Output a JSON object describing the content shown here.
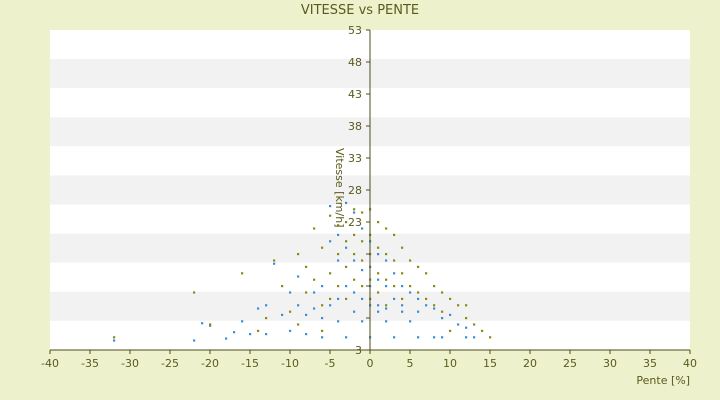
{
  "chart_data": {
    "type": "scatter",
    "title": "VITESSE vs PENTE",
    "xlabel": "Pente [%]",
    "ylabel": "Vitesse [km/h]",
    "xlim": [
      -40,
      40
    ],
    "ylim": [
      3,
      53
    ],
    "x_ticks": [
      -40,
      -35,
      -30,
      -25,
      -20,
      -15,
      -10,
      -5,
      0,
      5,
      10,
      15,
      20,
      25,
      30,
      35,
      40
    ],
    "y_ticks": [
      3,
      8,
      13,
      18,
      23,
      28,
      33,
      38,
      43,
      48,
      53
    ],
    "y_tick_labels": [
      "3",
      "",
      "",
      "",
      "23",
      "28",
      "33",
      "38",
      "43",
      "48",
      "53"
    ],
    "grid": "horizontal bands",
    "colors": {
      "background": "#eef2cc",
      "band_light": "#ffffff",
      "band_grey": "#f2f2f2",
      "axis": "#4d4d1a",
      "text": "#5a5a1e"
    },
    "series": [
      {
        "marker_color": "#3a8fd4",
        "points": [
          [
            -32,
            4.5
          ],
          [
            -22,
            4.5
          ],
          [
            -21,
            7.2
          ],
          [
            -20,
            6.8
          ],
          [
            -18,
            4.8
          ],
          [
            -17,
            5.8
          ],
          [
            -16,
            7.5
          ],
          [
            -15,
            5.5
          ],
          [
            -14,
            9.5
          ],
          [
            -13,
            10
          ],
          [
            -13,
            5.5
          ],
          [
            -12,
            16.5
          ],
          [
            -11,
            8.5
          ],
          [
            -10,
            6
          ],
          [
            -10,
            12
          ],
          [
            -9,
            14.5
          ],
          [
            -9,
            10
          ],
          [
            -8,
            8.5
          ],
          [
            -8,
            5.5
          ],
          [
            -7,
            9.5
          ],
          [
            -7,
            12
          ],
          [
            -6,
            13
          ],
          [
            -6,
            8
          ],
          [
            -5,
            25.5
          ],
          [
            -5,
            20
          ],
          [
            -5,
            10
          ],
          [
            -4,
            21
          ],
          [
            -4,
            17
          ],
          [
            -4,
            11
          ],
          [
            -3,
            26
          ],
          [
            -3,
            19
          ],
          [
            -3,
            13
          ],
          [
            -2,
            24.5
          ],
          [
            -2,
            17
          ],
          [
            -2,
            12
          ],
          [
            -1,
            22
          ],
          [
            -1,
            15.5
          ],
          [
            -1,
            11
          ],
          [
            0,
            20
          ],
          [
            0,
            16
          ],
          [
            0,
            13
          ],
          [
            0,
            10
          ],
          [
            1,
            18
          ],
          [
            1,
            14
          ],
          [
            1,
            10
          ],
          [
            2,
            17
          ],
          [
            2,
            13
          ],
          [
            2,
            9.5
          ],
          [
            3,
            15
          ],
          [
            3,
            11
          ],
          [
            4,
            13
          ],
          [
            4,
            10
          ],
          [
            5,
            12
          ],
          [
            6,
            11
          ],
          [
            6,
            9
          ],
          [
            7,
            10
          ],
          [
            8,
            9.5
          ],
          [
            9,
            8
          ],
          [
            10,
            8.5
          ],
          [
            11,
            7
          ],
          [
            12,
            6.5
          ],
          [
            13,
            5
          ],
          [
            -6,
            5
          ],
          [
            -3,
            5
          ],
          [
            0,
            5
          ],
          [
            3,
            5
          ],
          [
            6,
            5
          ],
          [
            9,
            5
          ],
          [
            12,
            5
          ],
          [
            -4,
            7.5
          ],
          [
            -1,
            7.5
          ],
          [
            2,
            7.5
          ],
          [
            5,
            7.5
          ],
          [
            -2,
            9
          ],
          [
            1,
            9
          ],
          [
            4,
            9
          ],
          [
            8,
            5
          ]
        ]
      },
      {
        "marker_color": "#8a8a12",
        "points": [
          [
            -32,
            5
          ],
          [
            -22,
            12
          ],
          [
            -20,
            7
          ],
          [
            -16,
            15
          ],
          [
            -14,
            6
          ],
          [
            -12,
            17
          ],
          [
            -11,
            13
          ],
          [
            -10,
            9
          ],
          [
            -9,
            18
          ],
          [
            -8,
            12
          ],
          [
            -8,
            16
          ],
          [
            -7,
            22
          ],
          [
            -7,
            14
          ],
          [
            -6,
            19
          ],
          [
            -6,
            10
          ],
          [
            -5,
            24
          ],
          [
            -5,
            15
          ],
          [
            -5,
            11
          ],
          [
            -4,
            22.5
          ],
          [
            -4,
            18
          ],
          [
            -4,
            13
          ],
          [
            -3,
            23
          ],
          [
            -3,
            20
          ],
          [
            -3,
            16
          ],
          [
            -3,
            11
          ],
          [
            -2,
            25
          ],
          [
            -2,
            21
          ],
          [
            -2,
            18
          ],
          [
            -2,
            14
          ],
          [
            -1,
            24.5
          ],
          [
            -1,
            20
          ],
          [
            -1,
            17
          ],
          [
            -1,
            13
          ],
          [
            0,
            25
          ],
          [
            0,
            21
          ],
          [
            0,
            18
          ],
          [
            0,
            14
          ],
          [
            0,
            11
          ],
          [
            1,
            23
          ],
          [
            1,
            19
          ],
          [
            1,
            15
          ],
          [
            1,
            12
          ],
          [
            2,
            22
          ],
          [
            2,
            18
          ],
          [
            2,
            14
          ],
          [
            2,
            10
          ],
          [
            3,
            21
          ],
          [
            3,
            17
          ],
          [
            3,
            13
          ],
          [
            4,
            19
          ],
          [
            4,
            15
          ],
          [
            4,
            11
          ],
          [
            5,
            17
          ],
          [
            5,
            13
          ],
          [
            6,
            16
          ],
          [
            6,
            12
          ],
          [
            7,
            15
          ],
          [
            7,
            11
          ],
          [
            8,
            13
          ],
          [
            8,
            10
          ],
          [
            9,
            12
          ],
          [
            9,
            9
          ],
          [
            10,
            11
          ],
          [
            11,
            10
          ],
          [
            12,
            8
          ],
          [
            13,
            7
          ],
          [
            14,
            6
          ],
          [
            15,
            5
          ],
          [
            -13,
            8
          ],
          [
            -9,
            7
          ],
          [
            -6,
            6
          ],
          [
            10,
            6
          ],
          [
            12,
            10
          ]
        ]
      }
    ]
  }
}
